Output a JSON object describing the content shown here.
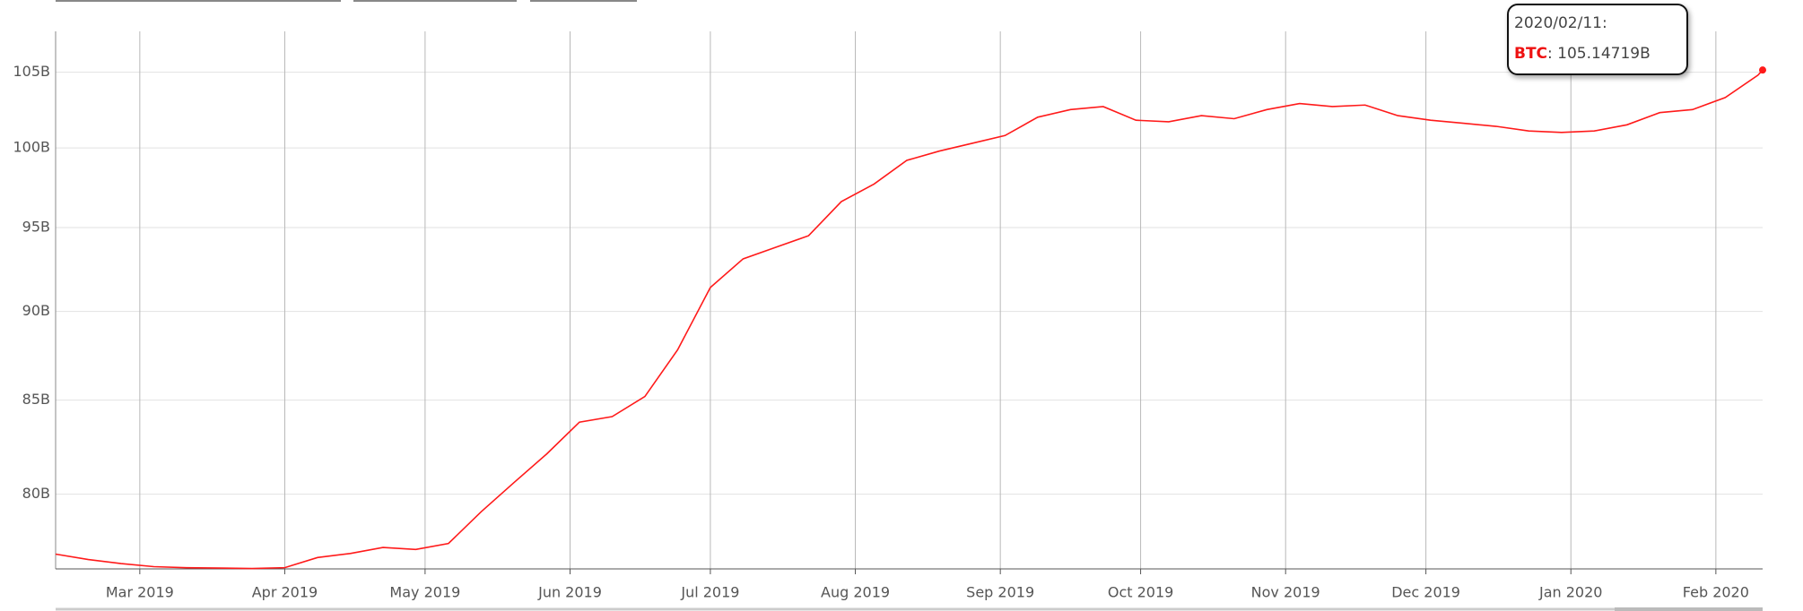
{
  "chart_data": {
    "type": "line",
    "x": [
      "2019/02/11",
      "2019/02/18",
      "2019/02/25",
      "2019/03/04",
      "2019/03/11",
      "2019/03/18",
      "2019/03/25",
      "2019/04/01",
      "2019/04/08",
      "2019/04/15",
      "2019/04/22",
      "2019/04/29",
      "2019/05/06",
      "2019/05/13",
      "2019/05/20",
      "2019/05/27",
      "2019/06/03",
      "2019/06/10",
      "2019/06/17",
      "2019/06/24",
      "2019/07/01",
      "2019/07/08",
      "2019/07/15",
      "2019/07/22",
      "2019/07/29",
      "2019/08/05",
      "2019/08/12",
      "2019/08/19",
      "2019/08/26",
      "2019/09/02",
      "2019/09/09",
      "2019/09/16",
      "2019/09/23",
      "2019/09/30",
      "2019/10/07",
      "2019/10/14",
      "2019/10/21",
      "2019/10/28",
      "2019/11/04",
      "2019/11/11",
      "2019/11/18",
      "2019/11/25",
      "2019/12/02",
      "2019/12/09",
      "2019/12/16",
      "2019/12/23",
      "2019/12/30",
      "2020/01/06",
      "2020/01/13",
      "2020/01/20",
      "2020/01/27",
      "2020/02/03",
      "2020/02/10",
      "2020/02/11"
    ],
    "series": [
      {
        "name": "BTC",
        "color": "#ff1a1a",
        "values": [
          76.97,
          76.7,
          76.5,
          76.35,
          76.3,
          76.28,
          76.26,
          76.3,
          76.8,
          77.0,
          77.3,
          77.2,
          77.5,
          79.1,
          80.6,
          82.1,
          83.8,
          84.1,
          85.2,
          87.8,
          91.4,
          93.1,
          93.8,
          94.5,
          96.6,
          97.7,
          99.2,
          99.8,
          100.3,
          100.8,
          102.0,
          102.5,
          102.7,
          101.8,
          101.7,
          102.1,
          101.9,
          102.5,
          102.9,
          102.7,
          102.8,
          102.1,
          101.8,
          101.6,
          101.4,
          101.1,
          101.0,
          101.1,
          101.5,
          102.3,
          102.5,
          103.3,
          104.8,
          105.14719
        ]
      }
    ],
    "xlim": [
      "2019/02/11",
      "2020/02/11"
    ],
    "xticks": [
      {
        "value": "2019/03/01",
        "label": "Mar 2019"
      },
      {
        "value": "2019/04/01",
        "label": "Apr 2019"
      },
      {
        "value": "2019/05/01",
        "label": "May 2019"
      },
      {
        "value": "2019/06/01",
        "label": "Jun 2019"
      },
      {
        "value": "2019/07/01",
        "label": "Jul 2019"
      },
      {
        "value": "2019/08/01",
        "label": "Aug 2019"
      },
      {
        "value": "2019/09/01",
        "label": "Sep 2019"
      },
      {
        "value": "2019/10/01",
        "label": "Oct 2019"
      },
      {
        "value": "2019/11/01",
        "label": "Nov 2019"
      },
      {
        "value": "2019/12/01",
        "label": "Dec 2019"
      },
      {
        "value": "2020/01/01",
        "label": "Jan 2020"
      },
      {
        "value": "2020/02/01",
        "label": "Feb 2020"
      }
    ],
    "ylim": [
      76.24,
      107.8
    ],
    "yticks": [
      {
        "value": 80,
        "label": "80B"
      },
      {
        "value": 85,
        "label": "85B"
      },
      {
        "value": 90,
        "label": "90B"
      },
      {
        "value": 95,
        "label": "95B"
      },
      {
        "value": 100,
        "label": "100B"
      },
      {
        "value": 105,
        "label": "105B"
      }
    ],
    "log_scale": true,
    "grid": true,
    "tooltip": {
      "date": "2020/02/11:",
      "value_label": ": 105.14719B"
    }
  }
}
